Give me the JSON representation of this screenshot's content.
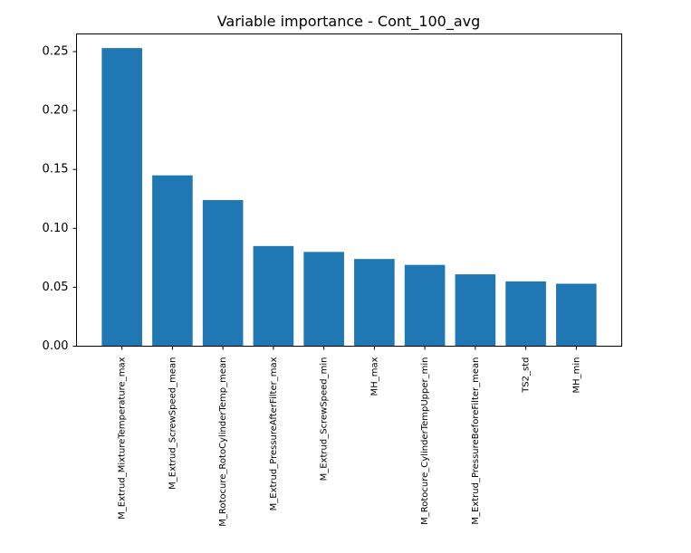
{
  "chart_data": {
    "type": "bar",
    "title": "Variable importance - Cont_100_avg",
    "xlabel": "",
    "ylabel": "",
    "ylim": [
      0,
      0.265
    ],
    "yticks": [
      "0.00",
      "0.05",
      "0.10",
      "0.15",
      "0.20",
      "0.25"
    ],
    "grid": false,
    "bar_color": "#1f77b4",
    "categories": [
      "M_Extrud_MixtureTemperature_max",
      "M_Extrud_ScrewSpeed_mean",
      "M_Rotocure_RotoCylinderTemp_mean",
      "M_Extrud_PressureAfterFilter_max",
      "M_Extrud_ScrewSpeed_min",
      "MH_max",
      "M_Rotocure_CylinderTempUpper_min",
      "M_Extrud_PressureBeforeFilter_mean",
      "TS2_std",
      "MH_min"
    ],
    "values": [
      0.253,
      0.145,
      0.124,
      0.085,
      0.08,
      0.074,
      0.069,
      0.061,
      0.055,
      0.053
    ]
  }
}
